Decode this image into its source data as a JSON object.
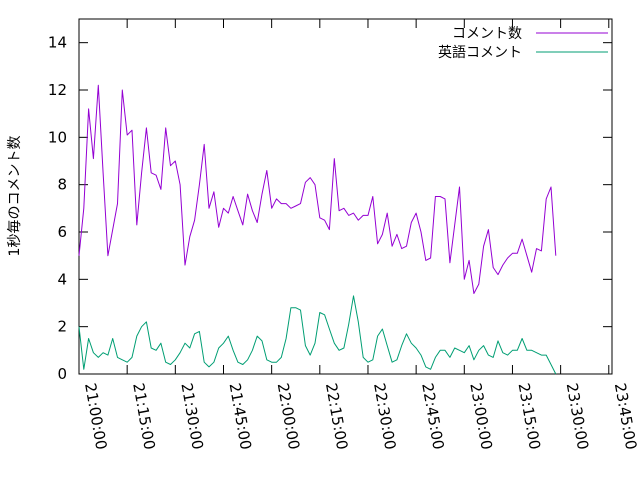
{
  "chart_data": {
    "type": "line",
    "title": "",
    "xlabel": "",
    "ylabel": "1秒毎のコメント数",
    "xlim": [
      "21:00:00",
      "23:46:00"
    ],
    "ylim": [
      0,
      15
    ],
    "x_ticks": [
      "21:00:00",
      "21:15:00",
      "21:30:00",
      "21:45:00",
      "22:00:00",
      "22:15:00",
      "22:30:00",
      "22:45:00",
      "23:00:00",
      "23:15:00",
      "23:30:00",
      "23:45:00"
    ],
    "y_ticks": [
      "0",
      "2",
      "4",
      "6",
      "8",
      "10",
      "12",
      "14"
    ],
    "grid": false,
    "legend_position": "top-right",
    "x_interval_minutes": 1.5,
    "x_start": "21:00:00",
    "series": [
      {
        "name": "コメント数",
        "color": "#9400d3",
        "values": [
          5.0,
          7.0,
          11.2,
          9.1,
          12.2,
          8.5,
          5.0,
          6.1,
          7.2,
          12.0,
          10.1,
          10.3,
          6.3,
          8.5,
          10.4,
          8.5,
          8.4,
          7.8,
          10.4,
          8.8,
          9.0,
          8.0,
          4.6,
          5.8,
          6.5,
          8.0,
          9.7,
          7.0,
          7.7,
          6.2,
          7.0,
          6.8,
          7.5,
          6.9,
          6.3,
          7.6,
          6.9,
          6.4,
          7.6,
          8.6,
          7.0,
          7.4,
          7.2,
          7.2,
          7.0,
          7.1,
          7.2,
          8.1,
          8.3,
          8.0,
          6.6,
          6.5,
          6.1,
          9.1,
          6.9,
          7.0,
          6.7,
          6.8,
          6.5,
          6.7,
          6.7,
          7.5,
          5.5,
          5.9,
          6.8,
          5.4,
          5.9,
          5.3,
          5.4,
          6.4,
          6.8,
          6.0,
          4.8,
          4.9,
          7.5,
          7.5,
          7.4,
          4.7,
          6.3,
          7.9,
          4.0,
          4.8,
          3.4,
          3.8,
          5.4,
          6.1,
          4.5,
          4.2,
          4.6,
          4.9,
          5.1,
          5.1,
          5.7,
          5.0,
          4.3,
          5.3,
          5.2,
          7.4,
          7.9,
          5.0
        ]
      },
      {
        "name": "英語コメント",
        "color": "#009e73",
        "values": [
          2.0,
          0.2,
          1.5,
          0.9,
          0.7,
          0.9,
          0.8,
          1.5,
          0.7,
          0.6,
          0.5,
          0.7,
          1.6,
          2.0,
          2.2,
          1.1,
          1.0,
          1.3,
          0.5,
          0.4,
          0.6,
          0.9,
          1.3,
          1.1,
          1.7,
          1.8,
          0.5,
          0.3,
          0.5,
          1.1,
          1.3,
          1.6,
          1.0,
          0.5,
          0.4,
          0.6,
          1.0,
          1.6,
          1.4,
          0.6,
          0.5,
          0.5,
          0.7,
          1.5,
          2.8,
          2.8,
          2.7,
          1.2,
          0.8,
          1.3,
          2.6,
          2.5,
          1.9,
          1.3,
          1.0,
          1.1,
          2.1,
          3.3,
          2.2,
          0.7,
          0.5,
          0.6,
          1.6,
          1.9,
          1.2,
          0.5,
          0.6,
          1.2,
          1.7,
          1.3,
          1.1,
          0.8,
          0.3,
          0.2,
          0.7,
          1.0,
          1.0,
          0.7,
          1.1,
          1.0,
          0.9,
          1.2,
          0.6,
          1.0,
          1.2,
          0.8,
          0.7,
          1.4,
          0.9,
          0.8,
          1.0,
          1.0,
          1.5,
          1.0,
          1.0,
          0.9,
          0.8,
          0.8,
          0.4,
          0.0
        ]
      }
    ]
  }
}
